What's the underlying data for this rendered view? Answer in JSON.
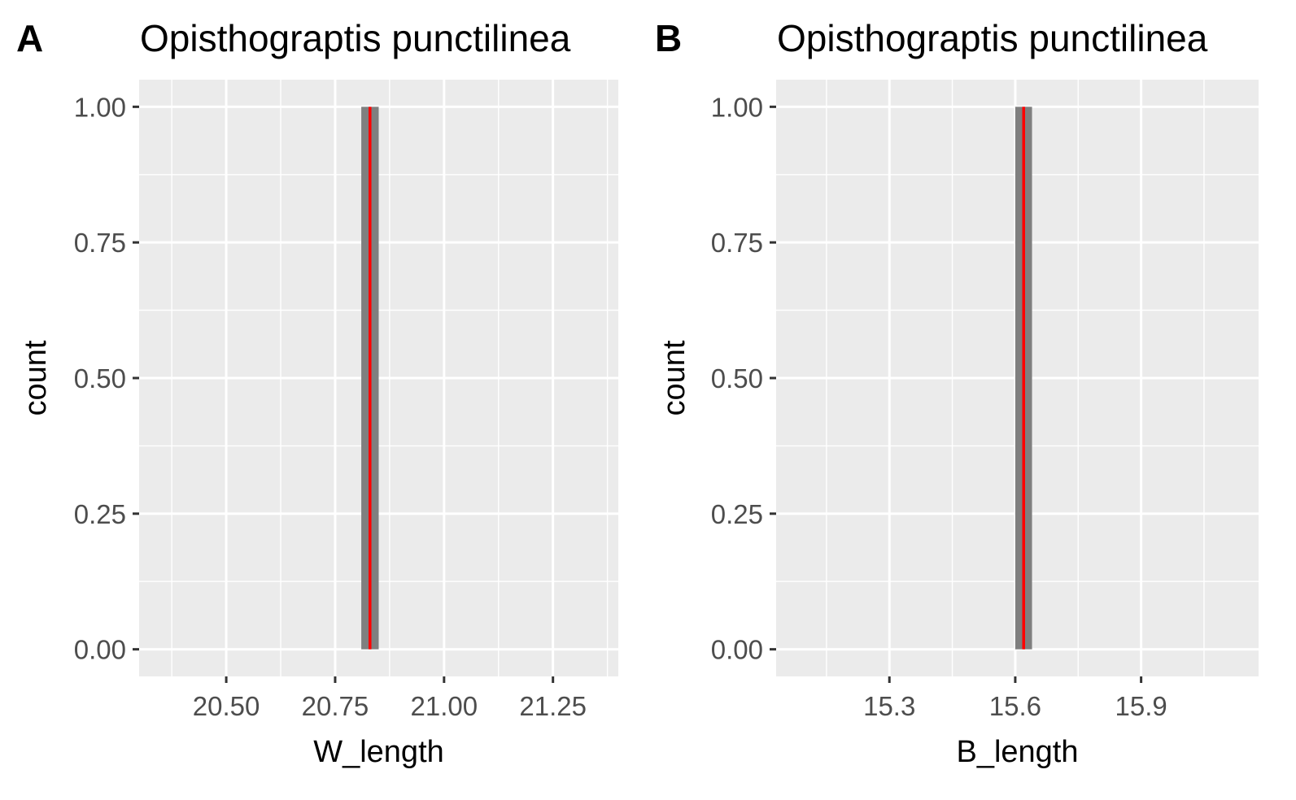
{
  "chart_data": [
    {
      "type": "histogram",
      "tag": "A",
      "title": "Opisthograptis punctilinea",
      "xlabel": "W_length",
      "ylabel": "count",
      "xlim": [
        20.3,
        21.4
      ],
      "ylim": [
        -0.05,
        1.05
      ],
      "xticks": [
        20.5,
        20.75,
        21.0,
        21.25
      ],
      "xtick_labels": [
        "20.50",
        "20.75",
        "21.00",
        "21.25"
      ],
      "xminor": [
        20.375,
        20.625,
        20.875,
        21.125,
        21.375
      ],
      "yticks": [
        0.0,
        0.25,
        0.5,
        0.75,
        1.0
      ],
      "ytick_labels": [
        "0.00",
        "0.25",
        "0.50",
        "0.75",
        "1.00"
      ],
      "yminor": [
        0.125,
        0.375,
        0.625,
        0.875
      ],
      "bins": [
        {
          "x0": 20.81,
          "x1": 20.85,
          "count": 1
        }
      ],
      "bar_color": "#7f7f7f",
      "vline": {
        "x": 20.83,
        "color": "#ff0000"
      },
      "grid": true
    },
    {
      "type": "histogram",
      "tag": "B",
      "title": "Opisthograptis punctilinea",
      "xlabel": "B_length",
      "ylabel": "count",
      "xlim": [
        15.03,
        16.18
      ],
      "ylim": [
        -0.05,
        1.05
      ],
      "xticks": [
        15.3,
        15.6,
        15.9
      ],
      "xtick_labels": [
        "15.3",
        "15.6",
        "15.9"
      ],
      "xminor": [
        15.15,
        15.45,
        15.75,
        16.05
      ],
      "yticks": [
        0.0,
        0.25,
        0.5,
        0.75,
        1.0
      ],
      "ytick_labels": [
        "0.00",
        "0.25",
        "0.50",
        "0.75",
        "1.00"
      ],
      "yminor": [
        0.125,
        0.375,
        0.625,
        0.875
      ],
      "bins": [
        {
          "x0": 15.6,
          "x1": 15.64,
          "count": 1
        }
      ],
      "bar_color": "#7f7f7f",
      "vline": {
        "x": 15.62,
        "color": "#ff0000"
      },
      "grid": true
    }
  ]
}
